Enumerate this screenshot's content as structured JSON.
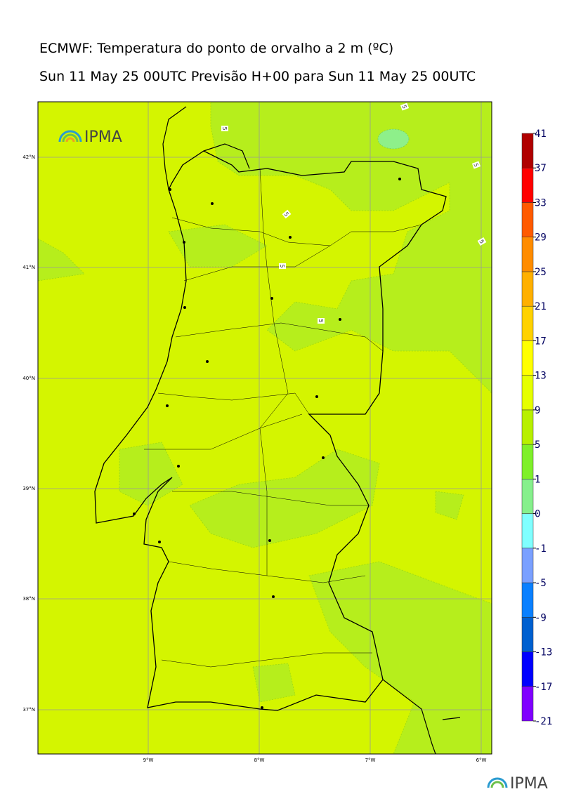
{
  "header": {
    "title": "ECMWF: Temperatura do ponto de orvalho a 2 m (ºC)",
    "subtitle": "Sun 11 May 25 00UTC Previsão H+00 para Sun 11 May 25 00UTC"
  },
  "map": {
    "lat_labels": [
      "42°N",
      "41°N",
      "40°N",
      "39°N",
      "38°N",
      "37°N"
    ],
    "lon_labels": [
      "9°W",
      "8°W",
      "7°W",
      "6°W"
    ],
    "contour_labels": [
      "5",
      "5",
      "5",
      "5",
      "5",
      "5",
      "5"
    ]
  },
  "colorbar": {
    "levels": [
      -21,
      -17,
      -13,
      -9,
      -5,
      -1,
      0,
      1,
      5,
      9,
      13,
      17,
      21,
      25,
      29,
      33,
      37,
      41
    ],
    "colors": [
      "#8000ff",
      "#0000ff",
      "#0060d0",
      "#0a80ff",
      "#7aa0ff",
      "#80ffff",
      "#86f08c",
      "#7ff02a",
      "#b8f000",
      "#e6ff00",
      "#ffff00",
      "#ffd200",
      "#ffb000",
      "#ff8c00",
      "#ff5a00",
      "#ff0000",
      "#b00000"
    ]
  },
  "logos": {
    "top": "IPMA",
    "bottom": "IPMA"
  }
}
